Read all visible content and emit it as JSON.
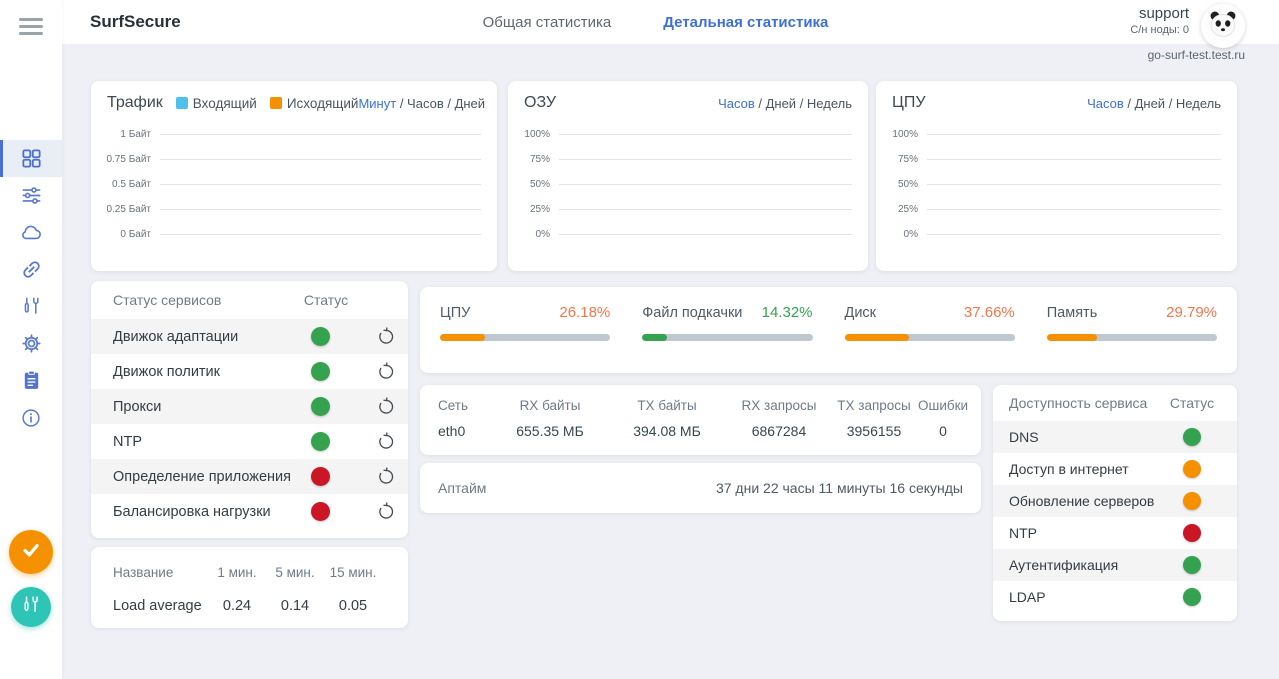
{
  "header": {
    "app_title": "SurfSecure",
    "tabs": [
      {
        "label": "Общая статистика",
        "active": false
      },
      {
        "label": "Детальная статистика",
        "active": true
      }
    ],
    "user": {
      "name": "support",
      "node_info": "С/н ноды: 0",
      "host": "go-surf-test.test.ru"
    }
  },
  "sidebar": {
    "items": [
      {
        "icon": "dashboard-icon",
        "active": true
      },
      {
        "icon": "tune-sliders-icon",
        "active": false
      },
      {
        "icon": "cloud-icon",
        "active": false
      },
      {
        "icon": "link-icon",
        "active": false
      },
      {
        "icon": "tools-icon",
        "active": false
      },
      {
        "icon": "settings-gear-icon",
        "active": false
      },
      {
        "icon": "clipboard-icon",
        "active": false
      },
      {
        "icon": "info-icon",
        "active": false
      }
    ],
    "bottom_buttons": [
      {
        "icon": "check-circle-icon",
        "color": "#f59100"
      },
      {
        "icon": "tools-circle-icon",
        "color": "#2ec4b6"
      }
    ]
  },
  "chart_data": [
    {
      "type": "line",
      "title": "Трафик",
      "legend": [
        {
          "name": "Входящий",
          "color": "#4fc0ee"
        },
        {
          "name": "Исходящий",
          "color": "#f59100"
        }
      ],
      "range_tabs": [
        {
          "label": "Минут",
          "active": true
        },
        {
          "label": "Часов",
          "active": false
        },
        {
          "label": "Дней",
          "active": false
        }
      ],
      "yticks": [
        "1 Байт",
        "0.75 Байт",
        "0.5 Байт",
        "0.25 Байт",
        "0 Байт"
      ],
      "ylim": [
        "0 Байт",
        "1 Байт"
      ],
      "grid": true,
      "series": [
        {
          "name": "Входящий",
          "values": []
        },
        {
          "name": "Исходящий",
          "values": []
        }
      ]
    },
    {
      "type": "line",
      "title": "ОЗУ",
      "range_tabs": [
        {
          "label": "Часов",
          "active": true
        },
        {
          "label": "Дней",
          "active": false
        },
        {
          "label": "Недель",
          "active": false
        }
      ],
      "yticks": [
        "100%",
        "75%",
        "50%",
        "25%",
        "0%"
      ],
      "ylim": [
        "0%",
        "100%"
      ],
      "grid": true,
      "series": []
    },
    {
      "type": "line",
      "title": "ЦПУ",
      "range_tabs": [
        {
          "label": "Часов",
          "active": true
        },
        {
          "label": "Дней",
          "active": false
        },
        {
          "label": "Недель",
          "active": false
        }
      ],
      "yticks": [
        "100%",
        "75%",
        "50%",
        "25%",
        "0%"
      ],
      "ylim": [
        "0%",
        "100%"
      ],
      "grid": true,
      "series": []
    }
  ],
  "services": {
    "title": "Статус сервисов",
    "status_header": "Статус",
    "rows": [
      {
        "label": "Движок адаптации",
        "status": "green"
      },
      {
        "label": "Движок политик",
        "status": "green"
      },
      {
        "label": "Прокси",
        "status": "green"
      },
      {
        "label": "NTP",
        "status": "green"
      },
      {
        "label": "Определение приложения",
        "status": "red"
      },
      {
        "label": "Балансировка нагрузки",
        "status": "red"
      }
    ]
  },
  "metrics": [
    {
      "label": "ЦПУ",
      "value": "26.18%",
      "percent": 26.18,
      "color": "orange"
    },
    {
      "label": "Файл подкачки",
      "value": "14.32%",
      "percent": 14.32,
      "color": "green"
    },
    {
      "label": "Диск",
      "value": "37.66%",
      "percent": 37.66,
      "color": "orange"
    },
    {
      "label": "Память",
      "value": "29.79%",
      "percent": 29.79,
      "color": "orange"
    }
  ],
  "network": {
    "headers": [
      "Сеть",
      "RX байты",
      "TX байты",
      "RX запросы",
      "TX запросы",
      "Ошибки"
    ],
    "rows": [
      [
        "eth0",
        "655.35 МБ",
        "394.08 МБ",
        "6867284",
        "3956155",
        "0"
      ]
    ]
  },
  "uptime": {
    "label": "Аптайм",
    "value": "37 дни 22 часы 11 минуты 16 секунды"
  },
  "availability": {
    "title": "Доступность сервиса",
    "status_header": "Статус",
    "rows": [
      {
        "label": "DNS",
        "status": "green"
      },
      {
        "label": "Доступ в интернет",
        "status": "orange"
      },
      {
        "label": "Обновление серверов",
        "status": "orange"
      },
      {
        "label": "NTP",
        "status": "red"
      },
      {
        "label": "Аутентификация",
        "status": "green"
      },
      {
        "label": "LDAP",
        "status": "green"
      }
    ]
  },
  "load_average": {
    "headers": [
      "Название",
      "1 мин.",
      "5 мин.",
      "15 мин."
    ],
    "rows": [
      [
        "Load average",
        "0.24",
        "0.14",
        "0.05"
      ]
    ]
  },
  "status_colors": {
    "green": "#35a24f",
    "orange": "#f59100",
    "red": "#cb1626"
  }
}
